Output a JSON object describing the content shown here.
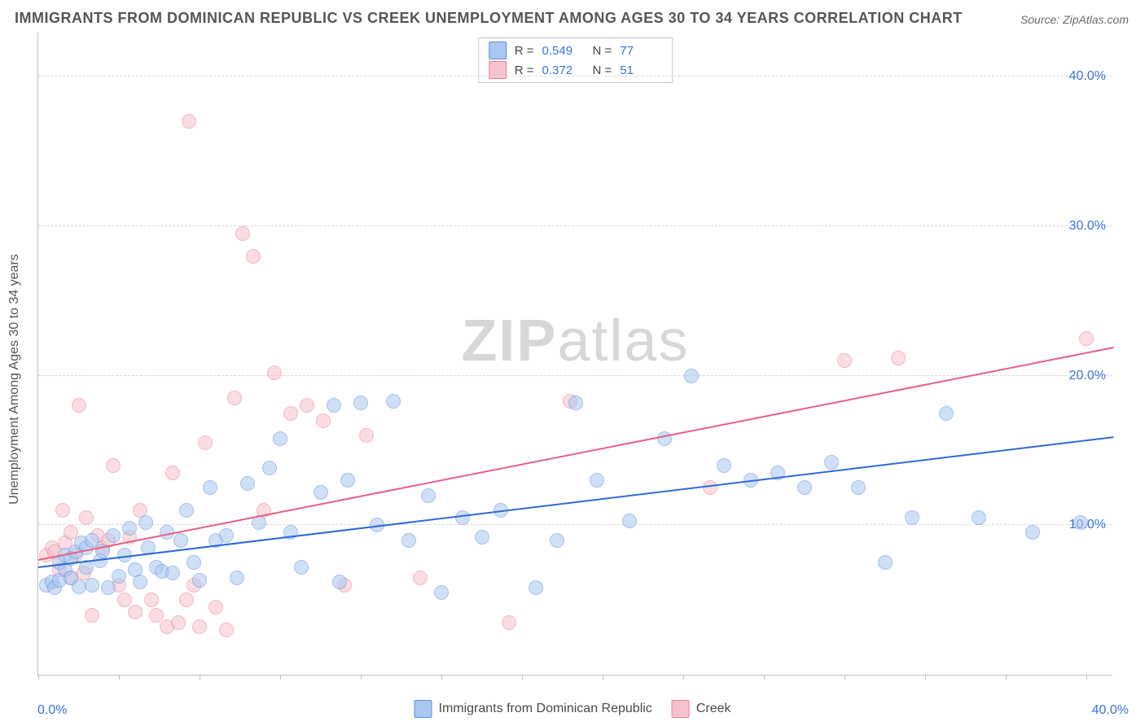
{
  "title": "IMMIGRANTS FROM DOMINICAN REPUBLIC VS CREEK UNEMPLOYMENT AMONG AGES 30 TO 34 YEARS CORRELATION CHART",
  "source": "Source: ZipAtlas.com",
  "watermark_a": "ZIP",
  "watermark_b": "atlas",
  "chart": {
    "type": "scatter",
    "background_color": "#ffffff",
    "grid_color": "#d9d9d9",
    "axis_color": "#bfbfbf",
    "xlim": [
      0,
      40
    ],
    "ylim": [
      0,
      43
    ],
    "ytick_values": [
      10,
      20,
      30,
      40
    ],
    "ytick_labels": [
      "10.0%",
      "20.0%",
      "30.0%",
      "40.0%"
    ],
    "xtick_label_min": "0.0%",
    "xtick_label_max": "40.0%",
    "xtick_positions": [
      0,
      3,
      6,
      9,
      12,
      15,
      18,
      21,
      24,
      27,
      30,
      33,
      36,
      39
    ],
    "ylabel": "Unemployment Among Ages 30 to 34 years",
    "tick_color": "#3b72d8",
    "label_color": "#555559",
    "label_fontsize": 16,
    "title_fontsize": 18,
    "marker_radius": 9,
    "marker_opacity": 0.55,
    "marker_border_opacity": 0.9,
    "line_width": 2
  },
  "series": {
    "blue": {
      "label": "Immigrants from Dominican Republic",
      "color_fill": "#a9c7f0",
      "color_stroke": "#5d8fde",
      "line_color": "#2e6bd6",
      "R": "0.549",
      "N": "77",
      "trend": {
        "x0": 0,
        "y0": 7.3,
        "x1": 40,
        "y1": 16.0
      },
      "points": [
        [
          0.3,
          6.0
        ],
        [
          0.5,
          6.2
        ],
        [
          0.6,
          5.8
        ],
        [
          0.8,
          7.5
        ],
        [
          0.8,
          6.3
        ],
        [
          1.0,
          8.0
        ],
        [
          1.0,
          7.0
        ],
        [
          1.2,
          7.8
        ],
        [
          1.2,
          6.5
        ],
        [
          1.4,
          8.2
        ],
        [
          1.5,
          5.9
        ],
        [
          1.6,
          8.8
        ],
        [
          1.8,
          7.2
        ],
        [
          1.8,
          8.5
        ],
        [
          2.0,
          6.0
        ],
        [
          2.0,
          9.0
        ],
        [
          2.3,
          7.6
        ],
        [
          2.4,
          8.3
        ],
        [
          2.6,
          5.8
        ],
        [
          2.8,
          9.3
        ],
        [
          3.0,
          6.6
        ],
        [
          3.2,
          8.0
        ],
        [
          3.4,
          9.8
        ],
        [
          3.6,
          7.0
        ],
        [
          3.8,
          6.2
        ],
        [
          4.0,
          10.2
        ],
        [
          4.1,
          8.5
        ],
        [
          4.4,
          7.2
        ],
        [
          4.6,
          6.9
        ],
        [
          4.8,
          9.5
        ],
        [
          5.0,
          6.8
        ],
        [
          5.3,
          9.0
        ],
        [
          5.5,
          11.0
        ],
        [
          5.8,
          7.5
        ],
        [
          6.0,
          6.3
        ],
        [
          6.4,
          12.5
        ],
        [
          6.6,
          9.0
        ],
        [
          7.0,
          9.3
        ],
        [
          7.4,
          6.5
        ],
        [
          7.8,
          12.8
        ],
        [
          8.2,
          10.2
        ],
        [
          8.6,
          13.8
        ],
        [
          9.0,
          15.8
        ],
        [
          9.4,
          9.5
        ],
        [
          9.8,
          7.2
        ],
        [
          10.5,
          12.2
        ],
        [
          11.0,
          18.0
        ],
        [
          11.2,
          6.2
        ],
        [
          11.5,
          13.0
        ],
        [
          12.0,
          18.2
        ],
        [
          12.6,
          10.0
        ],
        [
          13.2,
          18.3
        ],
        [
          13.8,
          9.0
        ],
        [
          14.5,
          12.0
        ],
        [
          15.0,
          5.5
        ],
        [
          15.8,
          10.5
        ],
        [
          16.5,
          9.2
        ],
        [
          17.2,
          11.0
        ],
        [
          18.5,
          5.8
        ],
        [
          19.3,
          9.0
        ],
        [
          20.0,
          18.2
        ],
        [
          20.8,
          13.0
        ],
        [
          22.0,
          10.3
        ],
        [
          23.3,
          15.8
        ],
        [
          24.3,
          20.0
        ],
        [
          25.5,
          14.0
        ],
        [
          26.5,
          13.0
        ],
        [
          27.5,
          13.5
        ],
        [
          28.5,
          12.5
        ],
        [
          29.5,
          14.2
        ],
        [
          30.5,
          12.5
        ],
        [
          31.5,
          7.5
        ],
        [
          32.5,
          10.5
        ],
        [
          33.8,
          17.5
        ],
        [
          35.0,
          10.5
        ],
        [
          37.0,
          9.5
        ],
        [
          38.8,
          10.2
        ]
      ]
    },
    "pink": {
      "label": "Creek",
      "color_fill": "#f5c3cd",
      "color_stroke": "#eb7e96",
      "line_color": "#e95f84",
      "R": "0.372",
      "N": "51",
      "trend": {
        "x0": 0,
        "y0": 7.8,
        "x1": 40,
        "y1": 22.0
      },
      "points": [
        [
          0.3,
          8.0
        ],
        [
          0.5,
          8.5
        ],
        [
          0.6,
          8.2
        ],
        [
          0.8,
          7.0
        ],
        [
          0.9,
          11.0
        ],
        [
          1.0,
          8.8
        ],
        [
          1.2,
          6.5
        ],
        [
          1.2,
          9.5
        ],
        [
          1.4,
          8.0
        ],
        [
          1.5,
          18.0
        ],
        [
          1.7,
          6.8
        ],
        [
          1.8,
          10.5
        ],
        [
          2.0,
          4.0
        ],
        [
          2.2,
          9.3
        ],
        [
          2.4,
          8.5
        ],
        [
          2.6,
          9.0
        ],
        [
          2.8,
          14.0
        ],
        [
          3.0,
          6.0
        ],
        [
          3.2,
          5.0
        ],
        [
          3.4,
          9.2
        ],
        [
          3.6,
          4.2
        ],
        [
          3.8,
          11.0
        ],
        [
          4.2,
          5.0
        ],
        [
          4.4,
          4.0
        ],
        [
          4.8,
          3.2
        ],
        [
          5.0,
          13.5
        ],
        [
          5.2,
          3.5
        ],
        [
          5.5,
          5.0
        ],
        [
          5.6,
          37.0
        ],
        [
          5.8,
          6.0
        ],
        [
          6.0,
          3.2
        ],
        [
          6.2,
          15.5
        ],
        [
          6.6,
          4.5
        ],
        [
          7.0,
          3.0
        ],
        [
          7.3,
          18.5
        ],
        [
          7.6,
          29.5
        ],
        [
          8.0,
          28.0
        ],
        [
          8.4,
          11.0
        ],
        [
          8.8,
          20.2
        ],
        [
          9.4,
          17.5
        ],
        [
          10.0,
          18.0
        ],
        [
          10.6,
          17.0
        ],
        [
          11.4,
          6.0
        ],
        [
          12.2,
          16.0
        ],
        [
          14.2,
          6.5
        ],
        [
          17.5,
          3.5
        ],
        [
          19.8,
          18.3
        ],
        [
          25.0,
          12.5
        ],
        [
          30.0,
          21.0
        ],
        [
          32.0,
          21.2
        ],
        [
          39.0,
          22.5
        ]
      ]
    }
  },
  "legend_top": {
    "r_prefix": "R =",
    "n_prefix": "N ="
  }
}
